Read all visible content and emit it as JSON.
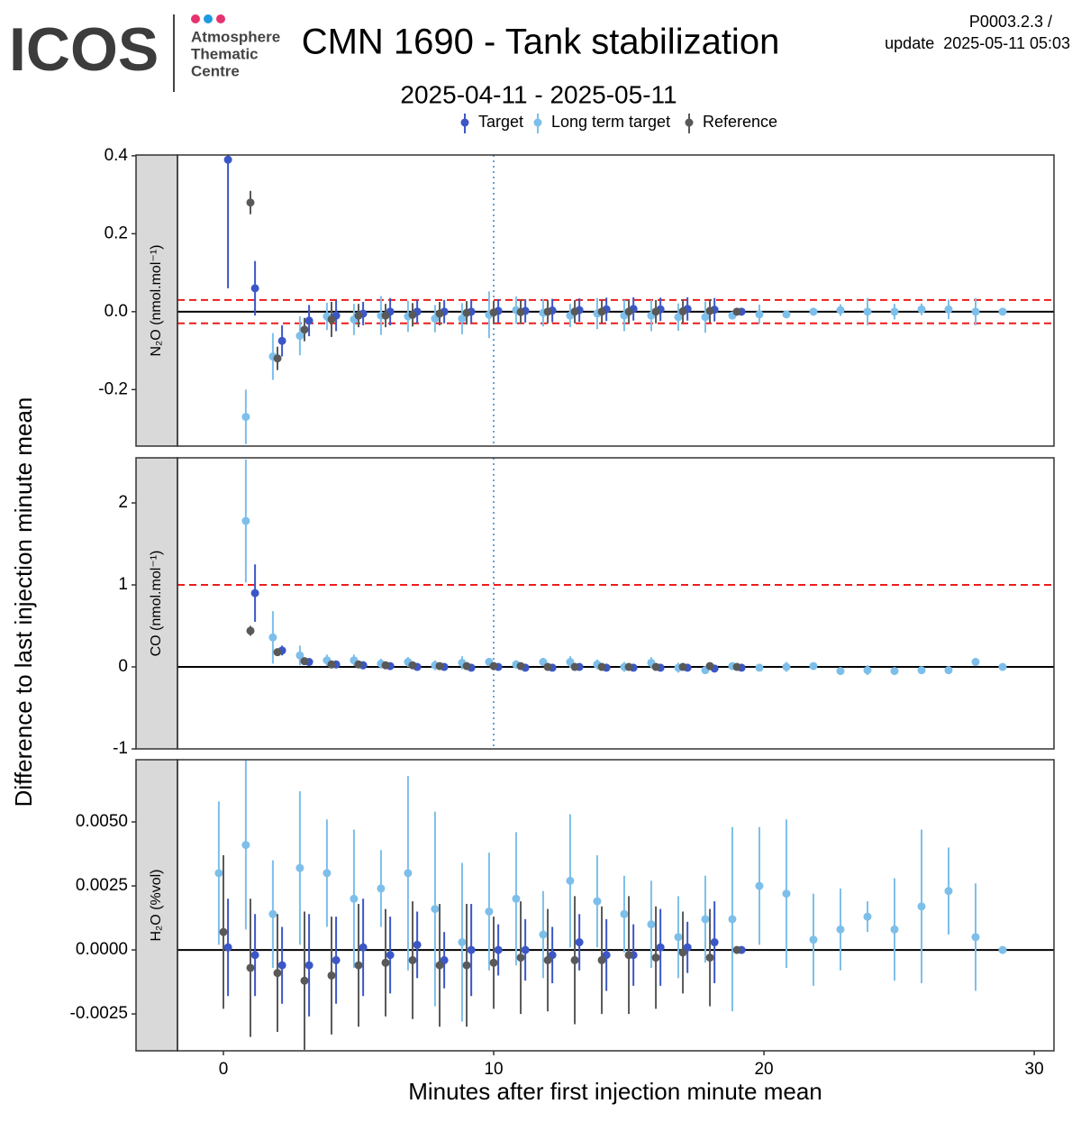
{
  "header": {
    "logo": "ICOS",
    "org": [
      "Atmosphere",
      "Thematic",
      "Centre"
    ],
    "version": "P0003.2.3 /",
    "update": "update  2025-05-11 05:03"
  },
  "chart_data": {
    "type": "scatter",
    "title": "CMN 1690 - Tank stabilization",
    "subtitle": "2025-04-11 - 2025-05-11",
    "x_label": "Minutes after first injection minute mean",
    "y_label": "Difference to last injection minute mean",
    "legend_position": "top",
    "xlim": [
      -1.7,
      30.73
    ],
    "xticks": [
      0,
      10,
      20,
      30
    ],
    "series": [
      {
        "name": "Target",
        "color": "#3b57c7",
        "x": [
          0.17,
          1.17,
          2.17,
          3.17,
          4.17,
          5.17,
          6.17,
          7.17,
          8.17,
          9.17,
          10.17,
          11.17,
          12.17,
          13.17,
          14.17,
          15.17,
          16.17,
          17.17,
          18.17,
          19.17
        ]
      },
      {
        "name": "Long term target",
        "color": "#7dbfea",
        "x": [
          -0.17,
          0.83,
          1.83,
          2.83,
          3.83,
          4.83,
          5.83,
          6.83,
          7.83,
          8.83,
          9.83,
          10.83,
          11.83,
          12.83,
          13.83,
          14.83,
          15.83,
          16.83,
          17.83,
          18.83,
          19.83,
          20.83,
          21.83,
          22.83,
          23.83,
          24.83,
          25.83,
          26.83,
          27.83,
          28.83
        ]
      },
      {
        "name": "Reference",
        "color": "#595959",
        "x": [
          0,
          1,
          2,
          3,
          4,
          5,
          6,
          7,
          8,
          9,
          10,
          11,
          12,
          13,
          14,
          15,
          16,
          17,
          18,
          19
        ]
      }
    ],
    "panels": [
      {
        "y_label": "N₂O (nmol.mol⁻¹)",
        "ylim": [
          -0.345,
          0.402
        ],
        "yticks": [
          0.4,
          0.2,
          {
            "value": 0,
            "label": "0.0"
          },
          -0.2
        ],
        "thresholds": [
          0.03,
          -0.03
        ],
        "vline": 10,
        "values": [
          [
            0.39,
            0.06,
            -0.075,
            -0.023,
            -0.01,
            -0.005,
            0,
            0,
            0,
            0,
            0.002,
            0.002,
            0.003,
            0.004,
            0.006,
            0.007,
            0.006,
            0.007,
            0.005,
            0
          ],
          [
            null,
            -0.27,
            -0.115,
            -0.062,
            -0.012,
            -0.02,
            -0.01,
            -0.012,
            -0.018,
            -0.018,
            -0.008,
            0.004,
            -0.003,
            -0.01,
            -0.005,
            -0.01,
            -0.01,
            -0.014,
            -0.014,
            -0.01,
            -0.007,
            -0.007,
            0,
            0.004,
            0,
            0,
            0.006,
            0.006,
            0,
            0
          ],
          [
            null,
            0.28,
            -0.12,
            -0.046,
            -0.02,
            -0.01,
            -0.01,
            -0.008,
            -0.005,
            -0.003,
            -0.002,
            -0.001,
            0,
            0,
            0,
            0,
            0,
            0.001,
            0.002,
            0
          ]
        ],
        "errors": [
          [
            0.33,
            0.07,
            0.04,
            0.04,
            0.04,
            0.03,
            0.035,
            0.03,
            0.03,
            0.03,
            0.03,
            0.03,
            0.03,
            0.03,
            0.03,
            0.03,
            0.03,
            0.03,
            0.03,
            0.002
          ],
          [
            null,
            0.07,
            0.06,
            0.05,
            0.035,
            0.04,
            0.05,
            0.04,
            0.035,
            0.04,
            0.06,
            0.035,
            0.035,
            0.03,
            0.04,
            0.04,
            0.04,
            0.035,
            0.04,
            0.01,
            0.025,
            0.005,
            0.01,
            0.015,
            0.035,
            0.02,
            0.015,
            0.025,
            0.035,
            0.002
          ],
          [
            null,
            0.03,
            0.03,
            0.03,
            0.045,
            0.03,
            0.03,
            0.03,
            0.03,
            0.03,
            0.03,
            0.03,
            0.03,
            0.03,
            0.03,
            0.03,
            0.03,
            0.03,
            0.03,
            0.002
          ]
        ]
      },
      {
        "y_label": "CO (nmol.mol⁻¹)",
        "ylim": [
          -1,
          2.55
        ],
        "yticks": [
          2,
          1,
          0,
          -1
        ],
        "thresholds": [
          1
        ],
        "vline": 10,
        "values": [
          [
            null,
            0.9,
            0.2,
            0.06,
            0.03,
            0.02,
            0.01,
            0,
            0,
            -0.01,
            0,
            -0.01,
            -0.01,
            0,
            -0.01,
            -0.01,
            -0.01,
            -0.01,
            -0.02,
            -0.01
          ],
          [
            null,
            1.78,
            0.36,
            0.14,
            0.08,
            0.08,
            0.04,
            0.06,
            0.02,
            0.05,
            0.06,
            0.03,
            0.06,
            0.06,
            0.03,
            0,
            0.05,
            -0.01,
            -0.04,
            0.01,
            -0.01,
            0,
            0.01,
            -0.05,
            -0.04,
            -0.05,
            -0.04,
            -0.04,
            0.06,
            0
          ],
          [
            null,
            0.44,
            0.18,
            0.07,
            0.03,
            0.03,
            0.02,
            0.02,
            0.01,
            0.01,
            0.01,
            0.01,
            0,
            0,
            0,
            0,
            0,
            0,
            0.01,
            0
          ]
        ],
        "errors": [
          [
            null,
            0.35,
            0.06,
            0.04,
            0.04,
            0.05,
            0.04,
            0.04,
            0.04,
            0.04,
            0.03,
            0.03,
            0.03,
            0.03,
            0.03,
            0.03,
            0.03,
            0.03,
            0.03,
            0.01
          ],
          [
            null,
            0.75,
            0.32,
            0.12,
            0.07,
            0.07,
            0.06,
            0.06,
            0.06,
            0.08,
            0.05,
            0.05,
            0.05,
            0.07,
            0.06,
            0.06,
            0.07,
            0.06,
            0.04,
            0.03,
            0.03,
            0.06,
            0.03,
            0.03,
            0.06,
            0.04,
            0.03,
            0.03,
            0.05,
            0.01
          ],
          [
            null,
            0.06,
            0.04,
            0.04,
            0.03,
            0.03,
            0.03,
            0.03,
            0.03,
            0.03,
            0.03,
            0.03,
            0.03,
            0.03,
            0.03,
            0.03,
            0.03,
            0.03,
            0.03,
            0.01
          ]
        ]
      },
      {
        "y_label": "H₂O (%vol)",
        "ylim": [
          -0.00394,
          0.00743
        ],
        "yticks": [
          {
            "value": 0.005,
            "label": "0.0050"
          },
          {
            "value": 0.0025,
            "label": "0.0025"
          },
          {
            "value": 0,
            "label": "0.0000"
          },
          {
            "value": -0.0025,
            "label": "-0.0025"
          }
        ],
        "values": [
          [
            0.0001,
            -0.0002,
            -0.0006,
            -0.0006,
            -0.0004,
            0.0001,
            -0.0002,
            0.0002,
            -0.0004,
            0,
            0,
            0,
            -0.0002,
            0.0003,
            -0.0002,
            -0.0002,
            0.0001,
            0.0001,
            0.0003,
            0
          ],
          [
            0.003,
            0.0041,
            0.0014,
            0.0032,
            0.003,
            0.002,
            0.0024,
            0.003,
            0.0016,
            0.0003,
            0.0015,
            0.002,
            0.0006,
            0.0027,
            0.0019,
            0.0014,
            0.001,
            0.0005,
            0.0012,
            0.0012,
            0.0025,
            0.0022,
            0.0004,
            0.0008,
            0.0013,
            0.0008,
            0.0017,
            0.0023,
            0.0005,
            0
          ],
          [
            0.0007,
            -0.0007,
            -0.0009,
            -0.0012,
            -0.001,
            -0.0006,
            -0.0005,
            -0.0004,
            -0.0006,
            -0.0006,
            -0.0005,
            -0.0003,
            -0.0004,
            -0.0004,
            -0.0004,
            -0.0002,
            -0.0003,
            -0.0001,
            -0.0003,
            0
          ]
        ],
        "errors": [
          [
            0.0019,
            0.0016,
            0.0015,
            0.002,
            0.0017,
            0.0019,
            0.0015,
            0.0013,
            0.0011,
            0.0018,
            0.001,
            0.0012,
            0.0011,
            0.0011,
            0.0014,
            0.0012,
            0.0015,
            0.001,
            0.0016,
            0
          ],
          [
            0.0028,
            0.0033,
            0.0021,
            0.003,
            0.0021,
            0.0027,
            0.0015,
            0.0038,
            0.0038,
            0.0031,
            0.0023,
            0.0026,
            0.0017,
            0.0026,
            0.0018,
            0.0015,
            0.0017,
            0.0016,
            0.0017,
            0.0036,
            0.0023,
            0.0029,
            0.0018,
            0.0016,
            0.0006,
            0.002,
            0.003,
            0.0017,
            0.0021,
            0
          ],
          [
            0.003,
            0.0027,
            0.0023,
            0.0027,
            0.0023,
            0.0024,
            0.0021,
            0.0023,
            0.0024,
            0.0024,
            0.0018,
            0.0022,
            0.002,
            0.0025,
            0.0021,
            0.0023,
            0.002,
            0.0016,
            0.0019,
            0
          ]
        ]
      }
    ]
  }
}
